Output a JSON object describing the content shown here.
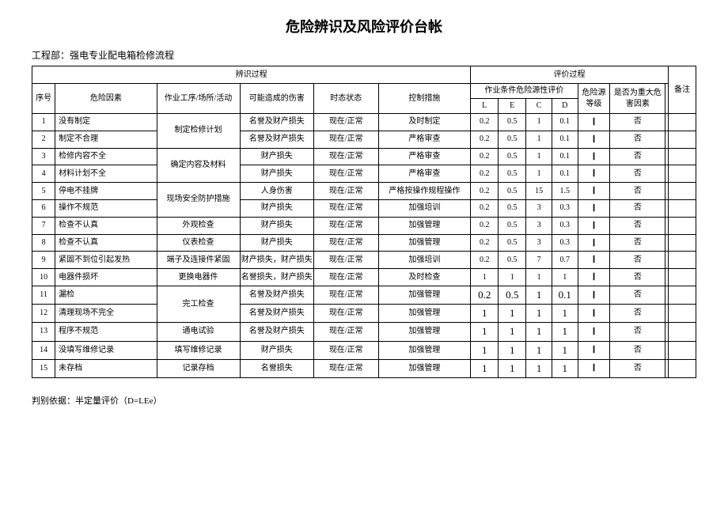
{
  "title": "危险辨识及风险评价台帐",
  "project_dept": "工程部：强电专业配电箱检修流程",
  "header": {
    "identify_process": "辨识过程",
    "eval_process": "评价过程",
    "seq": "序号",
    "risk_factor": "危险因素",
    "operation": "作业工序/场所/活动",
    "possible_harm": "可能造成的伤害",
    "time_state": "时态状态",
    "control_measure": "控制措施",
    "work_cond_eval": "作业条件危险源性评价",
    "L": "L",
    "E": "E",
    "C": "C",
    "D": "D",
    "risk_level": "危险源等级",
    "is_major": "是否为重大危害因素",
    "remark": "备注"
  },
  "rows": [
    {
      "n": "1",
      "factor": "没有制定",
      "op": "制定检修计划",
      "op_span": 2,
      "harm": "名誉及财产损失",
      "state": "现在/正常",
      "ctrl": "及时制定",
      "L": "0.2",
      "E": "0.5",
      "C": "1",
      "D": "0.1",
      "lvl": "Ⅰ",
      "major": "否"
    },
    {
      "n": "2",
      "factor": "制定不合理",
      "harm": "名誉及财产损失",
      "state": "现在/正常",
      "ctrl": "严格审查",
      "L": "0.2",
      "E": "0.5",
      "C": "1",
      "D": "0.1",
      "lvl": "Ⅰ",
      "major": "否"
    },
    {
      "n": "3",
      "factor": "检修内容不全",
      "op": "确定内容及材料",
      "op_span": 2,
      "harm": "财产损失",
      "state": "现在/正常",
      "ctrl": "严格审查",
      "L": "0.2",
      "E": "0.5",
      "C": "1",
      "D": "0.1",
      "lvl": "Ⅰ",
      "major": "否"
    },
    {
      "n": "4",
      "factor": "材料计划不全",
      "harm": "财产损失",
      "state": "现在/正常",
      "ctrl": "严格审查",
      "L": "0.2",
      "E": "0.5",
      "C": "1",
      "D": "0.1",
      "lvl": "Ⅰ",
      "major": "否"
    },
    {
      "n": "5",
      "factor": "停电不挂牌",
      "op": "现场安全防护措施",
      "op_span": 2,
      "harm": "人身伤害",
      "state": "现在/正常",
      "ctrl": "严格按操作规程操作",
      "L": "0.2",
      "E": "0.5",
      "C": "15",
      "D": "1.5",
      "lvl": "Ⅰ",
      "major": "否"
    },
    {
      "n": "6",
      "factor": "操作不规范",
      "harm": "财产损失",
      "state": "现在/正常",
      "ctrl": "加强培训",
      "L": "0.2",
      "E": "0.5",
      "C": "3",
      "D": "0.3",
      "lvl": "Ⅰ",
      "major": "否"
    },
    {
      "n": "7",
      "factor": "检查不认真",
      "op": "外观检查",
      "op_span": 1,
      "harm": "财产损失",
      "state": "现在/正常",
      "ctrl": "加强管理",
      "L": "0.2",
      "E": "0.5",
      "C": "3",
      "D": "0.3",
      "lvl": "Ⅰ",
      "major": "否"
    },
    {
      "n": "8",
      "factor": "检查不认真",
      "op": "仪表检查",
      "op_span": 1,
      "harm": "财产损失",
      "state": "现在/正常",
      "ctrl": "加强管理",
      "L": "0.2",
      "E": "0.5",
      "C": "3",
      "D": "0.3",
      "lvl": "Ⅰ",
      "major": "否"
    },
    {
      "n": "9",
      "factor": "紧固不到位引起发热",
      "op": "端子及连接件紧固",
      "op_span": 1,
      "harm": "财产损失，财产损失",
      "state": "现在/正常",
      "ctrl": "加强培训",
      "L": "0.2",
      "E": "0.5",
      "C": "7",
      "D": "0.7",
      "lvl": "Ⅰ",
      "major": "否"
    },
    {
      "n": "10",
      "factor": "电器件损坏",
      "op": "更换电器件",
      "op_span": 1,
      "harm": "名誉损失，财产损失",
      "state": "现在/正常",
      "ctrl": "及时检查",
      "L": "1",
      "E": "1",
      "C": "1",
      "D": "1",
      "lvl": "Ⅰ",
      "major": "否"
    },
    {
      "n": "11",
      "factor": "漏检",
      "op": "完工检查",
      "op_span": 2,
      "harm": "名誉及财产损失",
      "state": "现在/正常",
      "ctrl": "加强管理",
      "L": "0.2",
      "E": "0.5",
      "C": "1",
      "D": "0.1",
      "lvl": "Ⅰ",
      "major": "否",
      "bigL": true
    },
    {
      "n": "12",
      "factor": "清理现场不完全",
      "harm": "名誉及财产损失",
      "state": "现在/正常",
      "ctrl": "加强管理",
      "L": "1",
      "E": "1",
      "C": "1",
      "D": "1",
      "lvl": "Ⅰ",
      "major": "否",
      "bigL": true
    },
    {
      "n": "13",
      "factor": "程序不规范",
      "op": "通电试验",
      "op_span": 1,
      "harm": "名誉及财产损失",
      "state": "现在/正常",
      "ctrl": "加强管理",
      "L": "1",
      "E": "1",
      "C": "1",
      "D": "1",
      "lvl": "Ⅰ",
      "major": "否",
      "bigL": true
    },
    {
      "n": "14",
      "factor": "没填写维修记录",
      "op": "填写维修记录",
      "op_span": 1,
      "harm": "财产损失",
      "state": "现在/正常",
      "ctrl": "加强管理",
      "L": "1",
      "E": "1",
      "C": "1",
      "D": "1",
      "lvl": "Ⅰ",
      "major": "否",
      "bigL": true
    },
    {
      "n": "15",
      "factor": "未存档",
      "op": "记录存档",
      "op_span": 1,
      "harm": "名誉损失",
      "state": "现在/正常",
      "ctrl": "加强管理",
      "L": "1",
      "E": "1",
      "C": "1",
      "D": "1",
      "lvl": "Ⅰ",
      "major": "否",
      "bigL": true
    }
  ],
  "note": "判别依据：半定量评价（D=LEe）"
}
